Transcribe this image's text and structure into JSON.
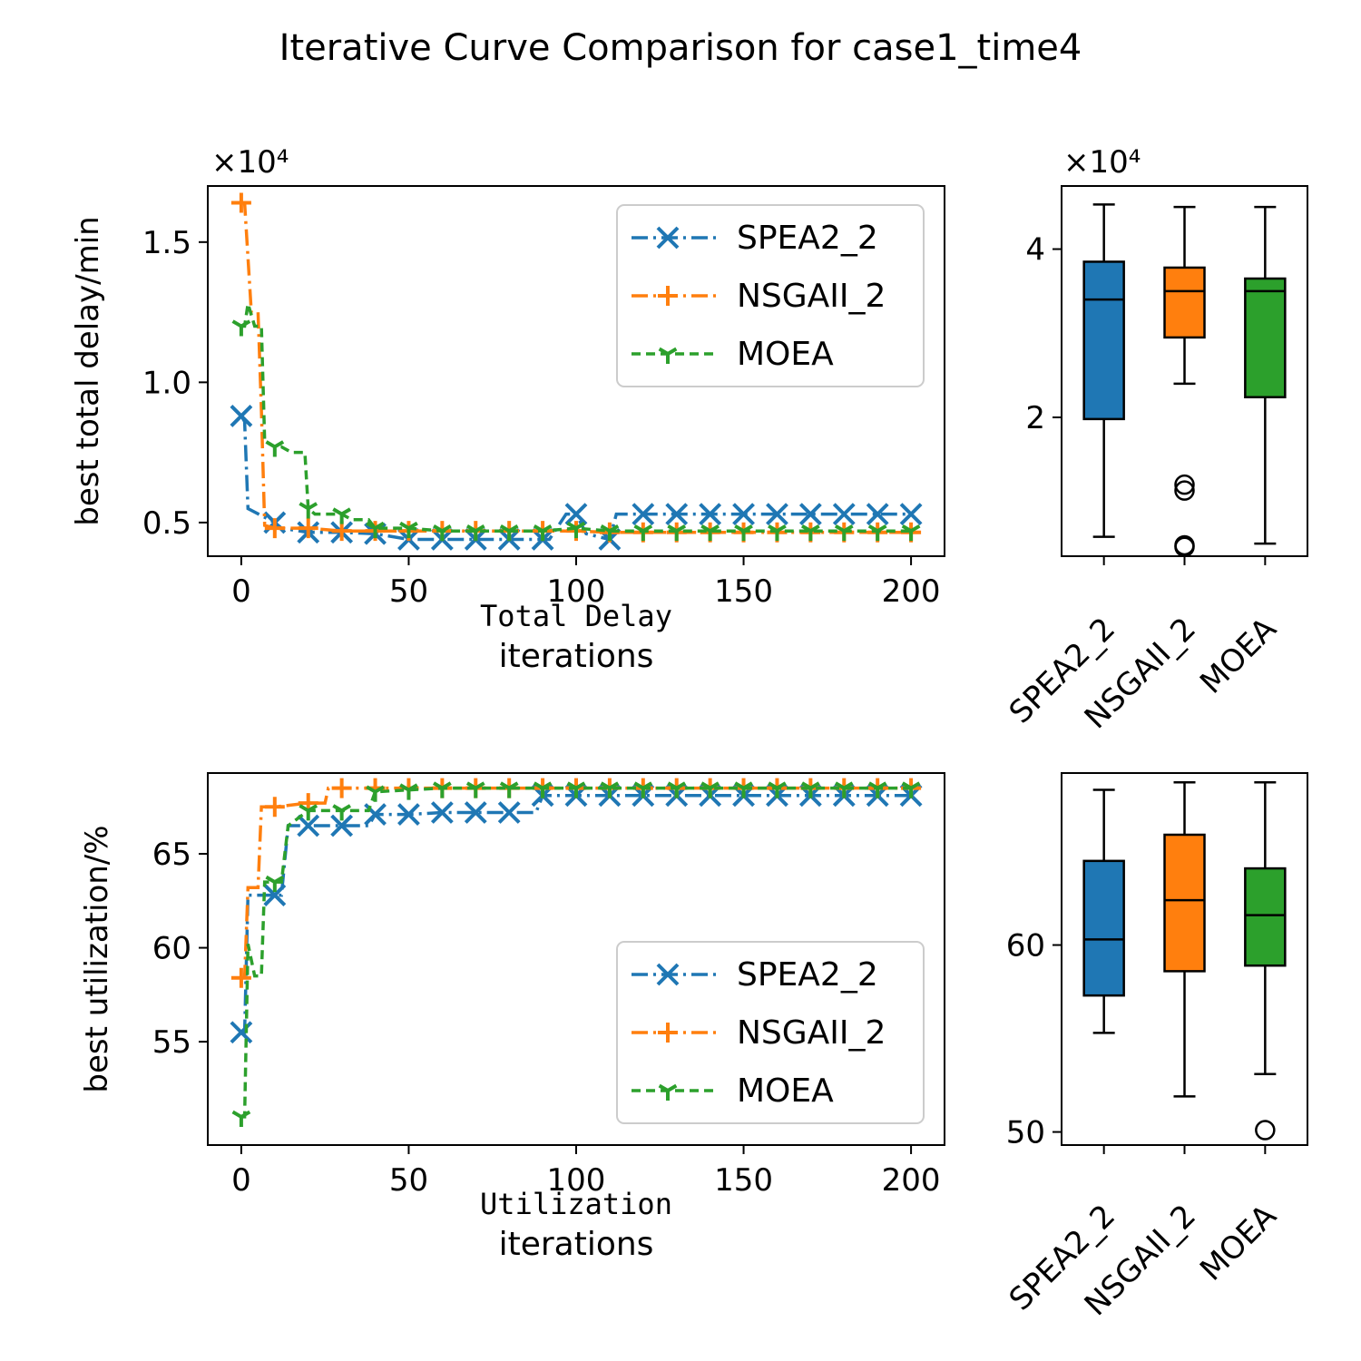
{
  "title": "Iterative Curve Comparison for case1_time4",
  "colors": {
    "SPEA2_2": "#1f77b4",
    "NSGAII_2": "#ff7f0e",
    "MOEA": "#2ca02c"
  },
  "chart_data": [
    {
      "type": "line",
      "caption": "Total Delay",
      "xlabel": "iterations",
      "ylabel": "best total delay/min",
      "offset_label": "×10⁴",
      "xlim": [
        -10,
        210
      ],
      "ylim": [
        3800,
        17000
      ],
      "x_ticks": [
        0,
        50,
        100,
        150,
        200
      ],
      "y_ticks": [
        5000,
        10000,
        15000
      ],
      "y_tick_labels": [
        "0.5",
        "1.0",
        "1.5"
      ],
      "legend": "upper right",
      "series": [
        {
          "name": "SPEA2_2",
          "marker": "x",
          "points": [
            [
              0,
              8800
            ],
            [
              1,
              8600
            ],
            [
              2,
              5500
            ],
            [
              10,
              5000
            ],
            [
              12,
              4800
            ],
            [
              20,
              4650
            ],
            [
              30,
              4650
            ],
            [
              40,
              4600
            ],
            [
              50,
              4400
            ],
            [
              60,
              4400
            ],
            [
              70,
              4400
            ],
            [
              80,
              4400
            ],
            [
              90,
              4400
            ],
            [
              92,
              4400
            ],
            [
              97,
              5300
            ],
            [
              100,
              5300
            ],
            [
              103,
              4600
            ],
            [
              110,
              4400
            ],
            [
              112,
              5300
            ],
            [
              120,
              5300
            ],
            [
              130,
              5300
            ],
            [
              140,
              5300
            ],
            [
              150,
              5300
            ],
            [
              160,
              5300
            ],
            [
              170,
              5300
            ],
            [
              180,
              5300
            ],
            [
              190,
              5300
            ],
            [
              200,
              5300
            ]
          ]
        },
        {
          "name": "NSGAII_2",
          "marker": "+",
          "points": [
            [
              0,
              16400
            ],
            [
              1,
              16400
            ],
            [
              3,
              12500
            ],
            [
              5,
              12500
            ],
            [
              6,
              9000
            ],
            [
              7,
              4900
            ],
            [
              10,
              4800
            ],
            [
              20,
              4800
            ],
            [
              30,
              4700
            ],
            [
              40,
              4700
            ],
            [
              50,
              4700
            ],
            [
              60,
              4700
            ],
            [
              70,
              4700
            ],
            [
              80,
              4700
            ],
            [
              90,
              4700
            ],
            [
              100,
              4700
            ],
            [
              110,
              4650
            ],
            [
              120,
              4650
            ],
            [
              130,
              4650
            ],
            [
              140,
              4650
            ],
            [
              150,
              4650
            ],
            [
              160,
              4650
            ],
            [
              170,
              4650
            ],
            [
              180,
              4650
            ],
            [
              190,
              4650
            ],
            [
              200,
              4650
            ]
          ]
        },
        {
          "name": "MOEA",
          "marker": "1",
          "points": [
            [
              0,
              12000
            ],
            [
              1,
              12000
            ],
            [
              2,
              12800
            ],
            [
              4,
              12000
            ],
            [
              6,
              12000
            ],
            [
              7,
              7900
            ],
            [
              10,
              7700
            ],
            [
              12,
              7700
            ],
            [
              15,
              7500
            ],
            [
              19,
              7500
            ],
            [
              20,
              5500
            ],
            [
              22,
              5300
            ],
            [
              30,
              5300
            ],
            [
              33,
              5100
            ],
            [
              38,
              5100
            ],
            [
              40,
              4800
            ],
            [
              50,
              4800
            ],
            [
              60,
              4700
            ],
            [
              70,
              4700
            ],
            [
              80,
              4700
            ],
            [
              90,
              4700
            ],
            [
              100,
              4800
            ],
            [
              110,
              4700
            ],
            [
              120,
              4700
            ],
            [
              130,
              4700
            ],
            [
              140,
              4700
            ],
            [
              150,
              4700
            ],
            [
              160,
              4700
            ],
            [
              170,
              4700
            ],
            [
              180,
              4700
            ],
            [
              190,
              4700
            ],
            [
              200,
              4700
            ]
          ]
        }
      ]
    },
    {
      "type": "box",
      "offset_label": "×10⁴",
      "ylim": [
        3500,
        47500
      ],
      "y_ticks": [
        20000,
        40000
      ],
      "y_tick_labels": [
        "2",
        "4"
      ],
      "categories": [
        "SPEA2_2",
        "NSGAII_2",
        "MOEA"
      ],
      "boxes": [
        {
          "whisker_low": 5800,
          "q1": 19800,
          "median": 34000,
          "q3": 38500,
          "whisker_high": 45300,
          "outliers": []
        },
        {
          "whisker_low": 24000,
          "q1": 29500,
          "median": 35000,
          "q3": 37800,
          "whisker_high": 45000,
          "outliers": [
            4800,
            4600,
            11300,
            12000
          ]
        },
        {
          "whisker_low": 5000,
          "q1": 22400,
          "median": 35000,
          "q3": 36500,
          "whisker_high": 45000,
          "outliers": []
        }
      ]
    },
    {
      "type": "line",
      "caption": "Utilization",
      "xlabel": "iterations",
      "ylabel": "best utilization/%",
      "xlim": [
        -10,
        210
      ],
      "ylim": [
        49.5,
        69.3
      ],
      "x_ticks": [
        0,
        50,
        100,
        150,
        200
      ],
      "y_ticks": [
        55,
        60,
        65
      ],
      "y_tick_labels": [
        "55",
        "60",
        "65"
      ],
      "legend": "lower right",
      "series": [
        {
          "name": "SPEA2_2",
          "marker": "x",
          "points": [
            [
              0,
              55.5
            ],
            [
              1,
              55.5
            ],
            [
              2,
              62.8
            ],
            [
              10,
              62.8
            ],
            [
              12,
              62.8
            ],
            [
              14,
              66.5
            ],
            [
              20,
              66.5
            ],
            [
              30,
              66.5
            ],
            [
              38,
              66.5
            ],
            [
              40,
              67.1
            ],
            [
              50,
              67.1
            ],
            [
              60,
              67.2
            ],
            [
              70,
              67.2
            ],
            [
              80,
              67.2
            ],
            [
              88,
              67.2
            ],
            [
              90,
              68.1
            ],
            [
              100,
              68.1
            ],
            [
              110,
              68.1
            ],
            [
              120,
              68.1
            ],
            [
              130,
              68.1
            ],
            [
              140,
              68.1
            ],
            [
              150,
              68.1
            ],
            [
              160,
              68.1
            ],
            [
              170,
              68.1
            ],
            [
              180,
              68.1
            ],
            [
              190,
              68.1
            ],
            [
              200,
              68.1
            ]
          ]
        },
        {
          "name": "NSGAII_2",
          "marker": "+",
          "points": [
            [
              0,
              58.4
            ],
            [
              1,
              58.4
            ],
            [
              2,
              63.2
            ],
            [
              5,
              63.2
            ],
            [
              6,
              67.5
            ],
            [
              10,
              67.5
            ],
            [
              20,
              67.7
            ],
            [
              25,
              67.7
            ],
            [
              26,
              68.5
            ],
            [
              30,
              68.5
            ],
            [
              40,
              68.5
            ],
            [
              50,
              68.5
            ],
            [
              60,
              68.5
            ],
            [
              70,
              68.5
            ],
            [
              80,
              68.5
            ],
            [
              90,
              68.5
            ],
            [
              100,
              68.5
            ],
            [
              110,
              68.5
            ],
            [
              120,
              68.5
            ],
            [
              130,
              68.5
            ],
            [
              140,
              68.5
            ],
            [
              150,
              68.5
            ],
            [
              160,
              68.5
            ],
            [
              170,
              68.5
            ],
            [
              180,
              68.5
            ],
            [
              190,
              68.5
            ],
            [
              200,
              68.5
            ]
          ]
        },
        {
          "name": "MOEA",
          "marker": "1",
          "points": [
            [
              0,
              51.0
            ],
            [
              1,
              51.0
            ],
            [
              2,
              60.2
            ],
            [
              4,
              58.5
            ],
            [
              6,
              58.5
            ],
            [
              7,
              63.5
            ],
            [
              10,
              63.5
            ],
            [
              12,
              63.5
            ],
            [
              14,
              66.5
            ],
            [
              20,
              67.3
            ],
            [
              30,
              67.3
            ],
            [
              38,
              67.3
            ],
            [
              40,
              68.3
            ],
            [
              50,
              68.4
            ],
            [
              60,
              68.5
            ],
            [
              70,
              68.5
            ],
            [
              80,
              68.5
            ],
            [
              90,
              68.5
            ],
            [
              100,
              68.5
            ],
            [
              110,
              68.5
            ],
            [
              120,
              68.5
            ],
            [
              130,
              68.5
            ],
            [
              140,
              68.5
            ],
            [
              150,
              68.5
            ],
            [
              160,
              68.5
            ],
            [
              170,
              68.5
            ],
            [
              180,
              68.5
            ],
            [
              190,
              68.5
            ],
            [
              200,
              68.5
            ]
          ]
        }
      ]
    },
    {
      "type": "box",
      "ylim": [
        49.3,
        69.2
      ],
      "y_ticks": [
        50,
        60
      ],
      "y_tick_labels": [
        "50",
        "60"
      ],
      "categories": [
        "SPEA2_2",
        "NSGAII_2",
        "MOEA"
      ],
      "boxes": [
        {
          "whisker_low": 55.3,
          "q1": 57.3,
          "median": 60.3,
          "q3": 64.5,
          "whisker_high": 68.3,
          "outliers": []
        },
        {
          "whisker_low": 51.9,
          "q1": 58.6,
          "median": 62.4,
          "q3": 65.9,
          "whisker_high": 68.7,
          "outliers": []
        },
        {
          "whisker_low": 53.1,
          "q1": 58.9,
          "median": 61.6,
          "q3": 64.1,
          "whisker_high": 68.7,
          "outliers": [
            50.1
          ]
        }
      ]
    }
  ]
}
